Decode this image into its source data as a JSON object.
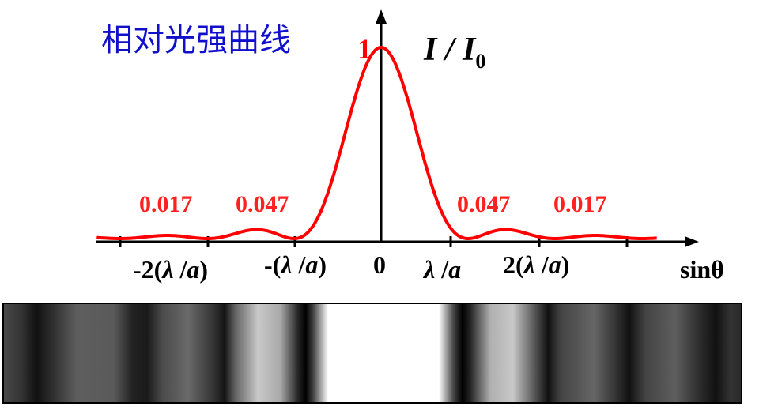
{
  "diagram": {
    "title": "相对光强曲线",
    "colors": {
      "title": "#1010cc",
      "curve": "#ff0000",
      "peak_labels": "#ff2020",
      "axes": "#000000"
    },
    "y_axis": {
      "label_main": "I / I",
      "label_sub": "0",
      "max_label": "1"
    },
    "x_axis": {
      "label": "sinθ",
      "ticks": [
        {
          "pre": "-2(",
          "lambda": "λ",
          "mid": " /",
          "a": "a",
          "post": ")"
        },
        {
          "pre": "-(",
          "lambda": "λ",
          "mid": " /",
          "a": "a",
          "post": ")"
        },
        {
          "pre": "0",
          "lambda": "",
          "mid": "",
          "a": "",
          "post": ""
        },
        {
          "pre": "",
          "lambda": "λ",
          "mid": " /",
          "a": "a",
          "post": ""
        },
        {
          "pre": "2(",
          "lambda": "λ",
          "mid": " /",
          "a": "a",
          "post": ")"
        }
      ]
    },
    "peak_labels": [
      "0.017",
      "0.047",
      "0.047",
      "0.017"
    ],
    "fringe_pattern": "single-slit diffraction bands"
  }
}
